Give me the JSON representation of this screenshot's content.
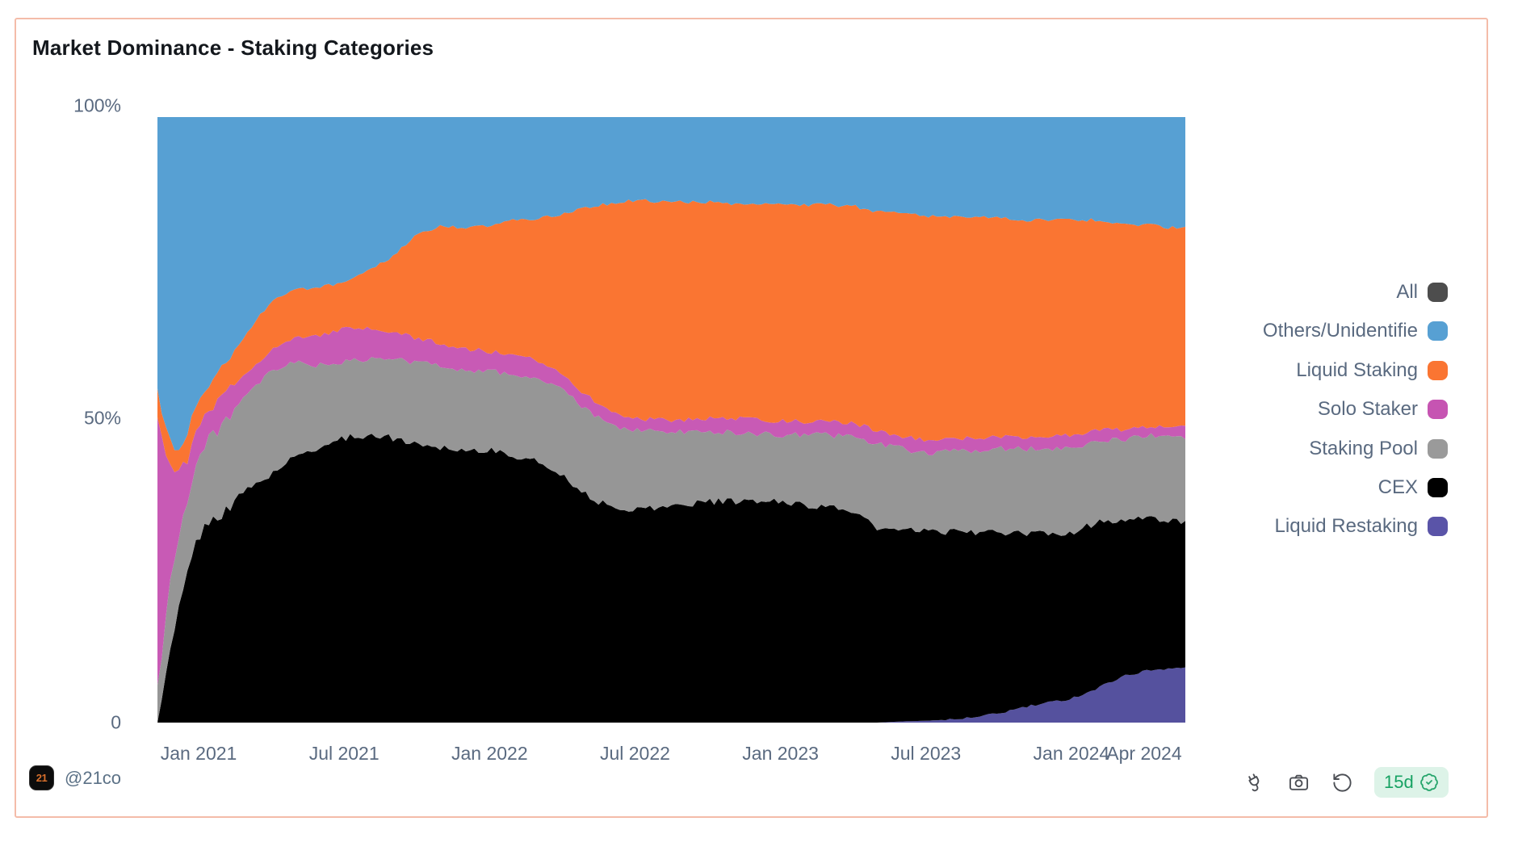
{
  "card": {
    "title": "Market Dominance - Staking Categories",
    "border_color": "#f4bca9"
  },
  "legend": {
    "position": "right",
    "items": [
      {
        "id": "all",
        "label": "All",
        "color": "#4d4d4d"
      },
      {
        "id": "others-unidentified",
        "label": "Others/Unidentifie",
        "color": "#57a0d3"
      },
      {
        "id": "liquid-staking",
        "label": "Liquid Staking",
        "color": "#fa7532"
      },
      {
        "id": "solo-staker",
        "label": "Solo Staker",
        "color": "#c654b2"
      },
      {
        "id": "staking-pool",
        "label": "Staking Pool",
        "color": "#9a9a9a"
      },
      {
        "id": "cex",
        "label": "CEX",
        "color": "#000000"
      },
      {
        "id": "liquid-restaking",
        "label": "Liquid Restaking",
        "color": "#5a54a8"
      }
    ]
  },
  "footer": {
    "logo_text": "21",
    "attribution": "@21co",
    "icons": [
      "plug-icon",
      "camera-icon",
      "rotate-ccw-icon"
    ],
    "badge_label": "15d",
    "badge_icon": "verified-check-icon",
    "badge_text_color": "#17a263",
    "badge_bg_color": "#ddf3e8"
  },
  "chart_data": {
    "type": "area",
    "stacked": true,
    "percentage": true,
    "title": "Market Dominance - Staking Categories",
    "xlabel": "",
    "ylabel": "",
    "ylim": [
      0,
      100
    ],
    "grid": false,
    "legend_position": "right",
    "y_ticks": [
      {
        "label": "100%",
        "frac": 1
      },
      {
        "label": "50%",
        "frac": 0.5
      },
      {
        "label": "0",
        "frac": 0
      }
    ],
    "x_unit": "months_since_jan_2021",
    "x_domain": [
      -1.7,
      40.7
    ],
    "x_ticks": [
      {
        "label": "Jan 2021",
        "month": 0
      },
      {
        "label": "Jul 2021",
        "month": 6
      },
      {
        "label": "Jan 2022",
        "month": 12
      },
      {
        "label": "Jul 2022",
        "month": 18
      },
      {
        "label": "Jan 2023",
        "month": 24
      },
      {
        "label": "Jul 2023",
        "month": 30
      },
      {
        "label": "Jan 2024",
        "month": 36
      },
      {
        "label": "Apr 2024",
        "month": 39
      }
    ],
    "x_months": [
      -1.7,
      -1.45,
      -1.2,
      -0.9,
      -0.5,
      0,
      0.5,
      1,
      2,
      3,
      4,
      5,
      6,
      7,
      8,
      9,
      10,
      11,
      12,
      13,
      14,
      15,
      16,
      17,
      18,
      19,
      20,
      21,
      22,
      23,
      24,
      25,
      26,
      27,
      28,
      29,
      30,
      31,
      32,
      33,
      34,
      35,
      36,
      37,
      38,
      39,
      40,
      40.7
    ],
    "series": [
      {
        "id": "liquid-restaking",
        "name": "Liquid Restaking",
        "color": "#55519e",
        "values": [
          0,
          0,
          0,
          0,
          0,
          0,
          0,
          0,
          0,
          0,
          0,
          0,
          0,
          0,
          0,
          0,
          0,
          0,
          0,
          0,
          0,
          0,
          0,
          0,
          0,
          0,
          0,
          0,
          0,
          0,
          0,
          0,
          0,
          0,
          0,
          0.2,
          0.3,
          0.5,
          0.8,
          1.5,
          2.5,
          3.2,
          4,
          5.5,
          7.5,
          8.5,
          9,
          9
        ]
      },
      {
        "id": "cex",
        "name": "CEX",
        "color": "#000000",
        "values": [
          1,
          5,
          11,
          17,
          24,
          31,
          33,
          35,
          38.5,
          41,
          44,
          45.5,
          47,
          47.5,
          47,
          46,
          45.5,
          45,
          45,
          44,
          43,
          41,
          37.5,
          35.5,
          35.3,
          35.5,
          36,
          36.5,
          36.5,
          36.5,
          36.5,
          36,
          35.5,
          35,
          32,
          31.5,
          31.3,
          31,
          30.7,
          29.8,
          28.7,
          28,
          27.3,
          27.5,
          26,
          25.2,
          24.4,
          24.3
        ]
      },
      {
        "id": "staking-pool",
        "name": "Staking Pool",
        "color": "#969696",
        "values": [
          5,
          8,
          12,
          13,
          12,
          13,
          14,
          14.5,
          15.5,
          17,
          15.5,
          13.5,
          12.5,
          12.5,
          13,
          13.5,
          13.5,
          13.2,
          13,
          13.5,
          13.8,
          14,
          14,
          13.6,
          13,
          12.5,
          12,
          11.6,
          11.4,
          11.2,
          11,
          11.5,
          12,
          12.2,
          14,
          13.5,
          13,
          13.2,
          13.5,
          13.9,
          14,
          14.1,
          14.2,
          13.4,
          13.2,
          13.7,
          13.8,
          13.9
        ]
      },
      {
        "id": "solo-staker",
        "name": "Solo Staker",
        "color": "#c85ab5",
        "values": [
          45,
          33,
          20,
          11,
          7,
          5,
          4.6,
          4.4,
          4,
          3.6,
          4,
          5,
          5.5,
          5,
          4.5,
          4,
          3.6,
          3.5,
          3.3,
          3,
          3,
          2.8,
          2.5,
          2.2,
          2,
          2,
          2,
          2.2,
          2.3,
          2.4,
          2.3,
          2.2,
          2.2,
          2.3,
          2.2,
          2.1,
          2,
          2,
          2,
          2,
          2,
          2,
          2,
          1.8,
          1.7,
          1.6,
          1.5,
          1.5
        ]
      },
      {
        "id": "liquid-staking",
        "name": "Liquid Staking",
        "color": "#fa7532",
        "values": [
          4,
          4,
          4,
          4,
          4.5,
          4.7,
          4.6,
          5,
          6.5,
          8,
          8,
          8,
          7.5,
          9.5,
          12.5,
          17,
          19.4,
          20,
          20.7,
          22.5,
          23.4,
          26.2,
          31,
          34.5,
          36,
          36,
          36,
          35.7,
          35.3,
          35.4,
          35.7,
          35.8,
          35.8,
          35.8,
          36.2,
          36.7,
          37.1,
          36.8,
          36.5,
          36.1,
          35.8,
          35.7,
          35.5,
          34.8,
          34,
          33.2,
          33.1,
          33.1
        ]
      },
      {
        "id": "others-unidentified",
        "name": "Others/Unidentified",
        "color": "#57a0d3",
        "values": [
          45,
          50,
          53,
          55,
          52.5,
          46.3,
          43.8,
          41.1,
          35.5,
          30.4,
          28.5,
          28,
          27.5,
          25.5,
          23,
          19.5,
          18,
          18.3,
          18,
          17,
          16.8,
          16,
          15,
          14.2,
          13.7,
          14,
          14,
          14,
          14.5,
          14.5,
          14.5,
          14.5,
          14.5,
          14.7,
          15.6,
          16,
          16.3,
          16.5,
          16.5,
          16.7,
          17,
          17,
          17,
          17,
          17.6,
          17.8,
          18.2,
          18.2
        ]
      }
    ]
  }
}
